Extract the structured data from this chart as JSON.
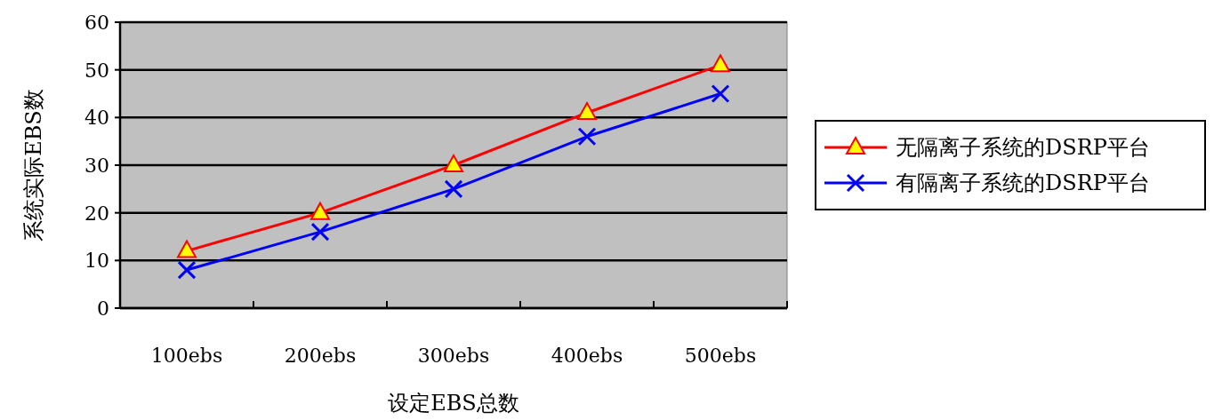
{
  "chart_data": {
    "type": "line",
    "xlabel": "设定EBS总数",
    "ylabel": "系统实际EBS数",
    "categories": [
      "100ebs",
      "200ebs",
      "300ebs",
      "400ebs",
      "500ebs"
    ],
    "series": [
      {
        "name": "无隔离子系统的DSRP平台",
        "color": "#ff0000",
        "marker": "triangle",
        "values": [
          12,
          20,
          30,
          41,
          51
        ]
      },
      {
        "name": "有隔离子系统的DSRP平台",
        "color": "#0000ff",
        "marker": "cross",
        "values": [
          8,
          16,
          25,
          36,
          45
        ]
      }
    ],
    "ylim": [
      0,
      60
    ],
    "yticks": [
      0,
      10,
      20,
      30,
      40,
      50,
      60
    ],
    "grid": "y",
    "legend": "right"
  }
}
